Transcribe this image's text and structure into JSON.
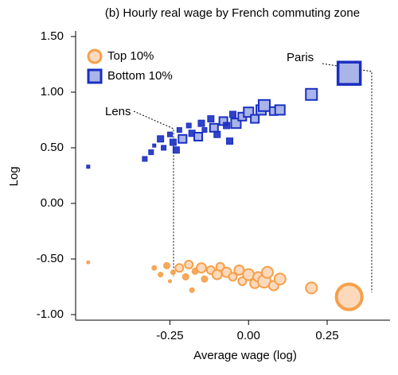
{
  "chart_data": {
    "type": "scatter",
    "title": "(b) Hourly real wage by French commuting zone",
    "xlabel": "Average wage (log)",
    "ylabel": "Log",
    "xlim": [
      -0.55,
      0.45
    ],
    "ylim": [
      -1.05,
      1.55
    ],
    "xticks": [
      -0.25,
      {
        "value": 0,
        "label": "0.00"
      },
      0.25
    ],
    "yticks": [
      {
        "value": 1.5,
        "label": "1.50"
      },
      {
        "value": 1,
        "label": "1.00"
      },
      {
        "value": 0.5,
        "label": "0.50"
      },
      {
        "value": 0,
        "label": "0.00"
      },
      {
        "value": -0.5,
        "label": "-0.50"
      },
      {
        "value": -1,
        "label": "-1.00"
      }
    ],
    "legend": "top-left",
    "annotations": [
      "Paris",
      "Lens"
    ],
    "series": [
      {
        "name": "Top 10%",
        "marker": "circle",
        "color": "#f5a04a",
        "fill": "#fcd9bd",
        "x": [
          -0.51,
          -0.3,
          -0.28,
          -0.26,
          -0.24,
          -0.22,
          -0.2,
          -0.19,
          -0.17,
          -0.15,
          -0.14,
          -0.12,
          -0.1,
          -0.09,
          -0.07,
          -0.05,
          -0.03,
          -0.02,
          0.0,
          0.02,
          0.03,
          0.05,
          0.06,
          0.08,
          0.1,
          -0.18,
          -0.25,
          0.2,
          0.32
        ],
        "values": [
          -0.53,
          -0.58,
          -0.64,
          -0.56,
          -0.62,
          -0.58,
          -0.66,
          -0.55,
          -0.61,
          -0.58,
          -0.68,
          -0.6,
          -0.64,
          -0.57,
          -0.62,
          -0.66,
          -0.6,
          -0.7,
          -0.64,
          -0.72,
          -0.66,
          -0.7,
          -0.62,
          -0.74,
          -0.68,
          -0.78,
          -0.7,
          -0.76,
          -0.84
        ],
        "sizes": [
          2,
          3,
          3,
          4,
          3,
          5,
          4,
          5,
          4,
          6,
          4,
          5,
          6,
          5,
          6,
          5,
          6,
          5,
          7,
          6,
          6,
          8,
          7,
          6,
          7,
          3,
          2,
          7,
          16
        ]
      },
      {
        "name": "Bottom 10%",
        "marker": "square",
        "color": "#1a2fc2",
        "fill": "#a9b4e8",
        "x": [
          -0.51,
          -0.33,
          -0.31,
          -0.3,
          -0.28,
          -0.27,
          -0.25,
          -0.24,
          -0.22,
          -0.21,
          -0.19,
          -0.18,
          -0.16,
          -0.15,
          -0.14,
          -0.12,
          -0.11,
          -0.1,
          -0.08,
          -0.07,
          -0.05,
          -0.04,
          -0.02,
          0.0,
          0.02,
          0.04,
          0.05,
          0.08,
          0.1,
          0.2,
          0.32,
          -0.23,
          -0.06
        ],
        "values": [
          0.33,
          0.4,
          0.46,
          0.52,
          0.58,
          0.5,
          0.62,
          0.55,
          0.66,
          0.58,
          0.7,
          0.63,
          0.6,
          0.72,
          0.66,
          0.76,
          0.68,
          0.62,
          0.74,
          0.7,
          0.8,
          0.72,
          0.78,
          0.82,
          0.76,
          0.84,
          0.88,
          0.83,
          0.84,
          0.98,
          1.17,
          0.48,
          0.56
        ],
        "sizes": [
          2,
          3,
          3,
          2,
          4,
          3,
          3,
          4,
          3,
          5,
          3,
          4,
          5,
          4,
          3,
          4,
          5,
          4,
          5,
          4,
          4,
          6,
          5,
          6,
          5,
          6,
          7,
          5,
          6,
          7,
          14,
          4,
          4
        ]
      }
    ]
  }
}
